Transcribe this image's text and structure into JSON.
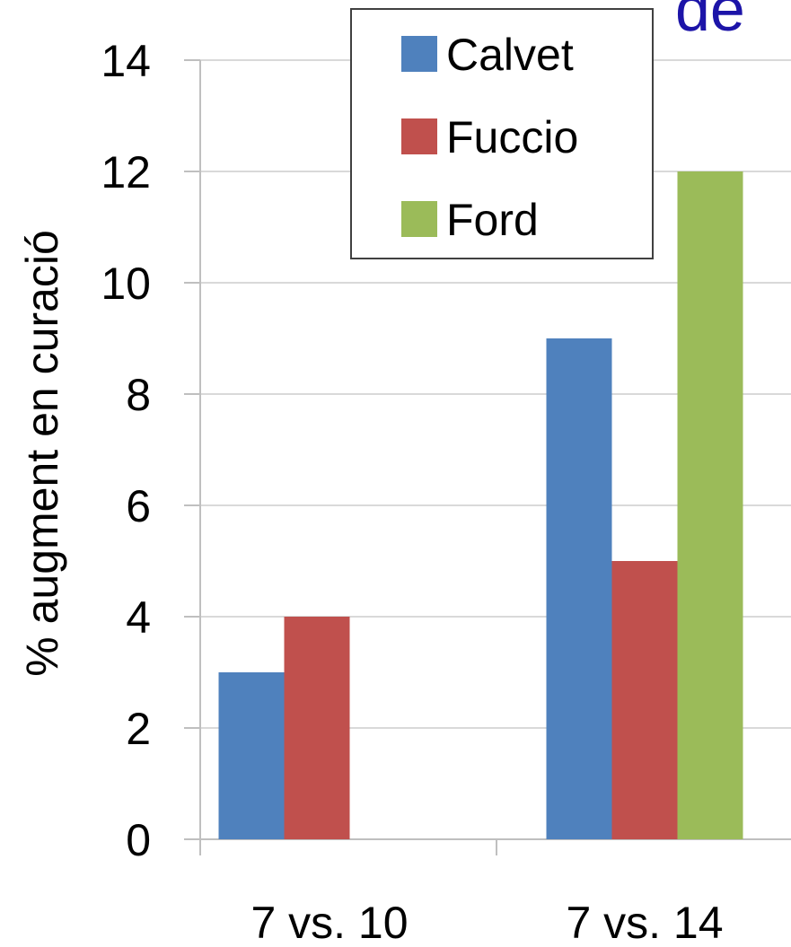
{
  "chart_data": {
    "type": "bar",
    "title_fragment": "de",
    "ylabel": "% augment en curació",
    "xlabel": "",
    "categories": [
      "7 vs. 10",
      "7 vs. 14"
    ],
    "series": [
      {
        "name": "Calvet",
        "color": "#4f81bd",
        "values": [
          3,
          9
        ]
      },
      {
        "name": "Fuccio",
        "color": "#c0504d",
        "values": [
          4,
          5
        ]
      },
      {
        "name": "Ford",
        "color": "#9bbb59",
        "values": [
          null,
          12
        ]
      }
    ],
    "ylim": [
      0,
      14
    ],
    "yticks": [
      0,
      2,
      4,
      6,
      8,
      10,
      12,
      14
    ],
    "ytick_labels": [
      "0",
      "2",
      "4",
      "6",
      "8",
      "10",
      "12",
      "14"
    ],
    "grid": true,
    "legend_position": "top-center",
    "title_color": "#1c14a8",
    "grid_color": "#d9d9d9"
  }
}
